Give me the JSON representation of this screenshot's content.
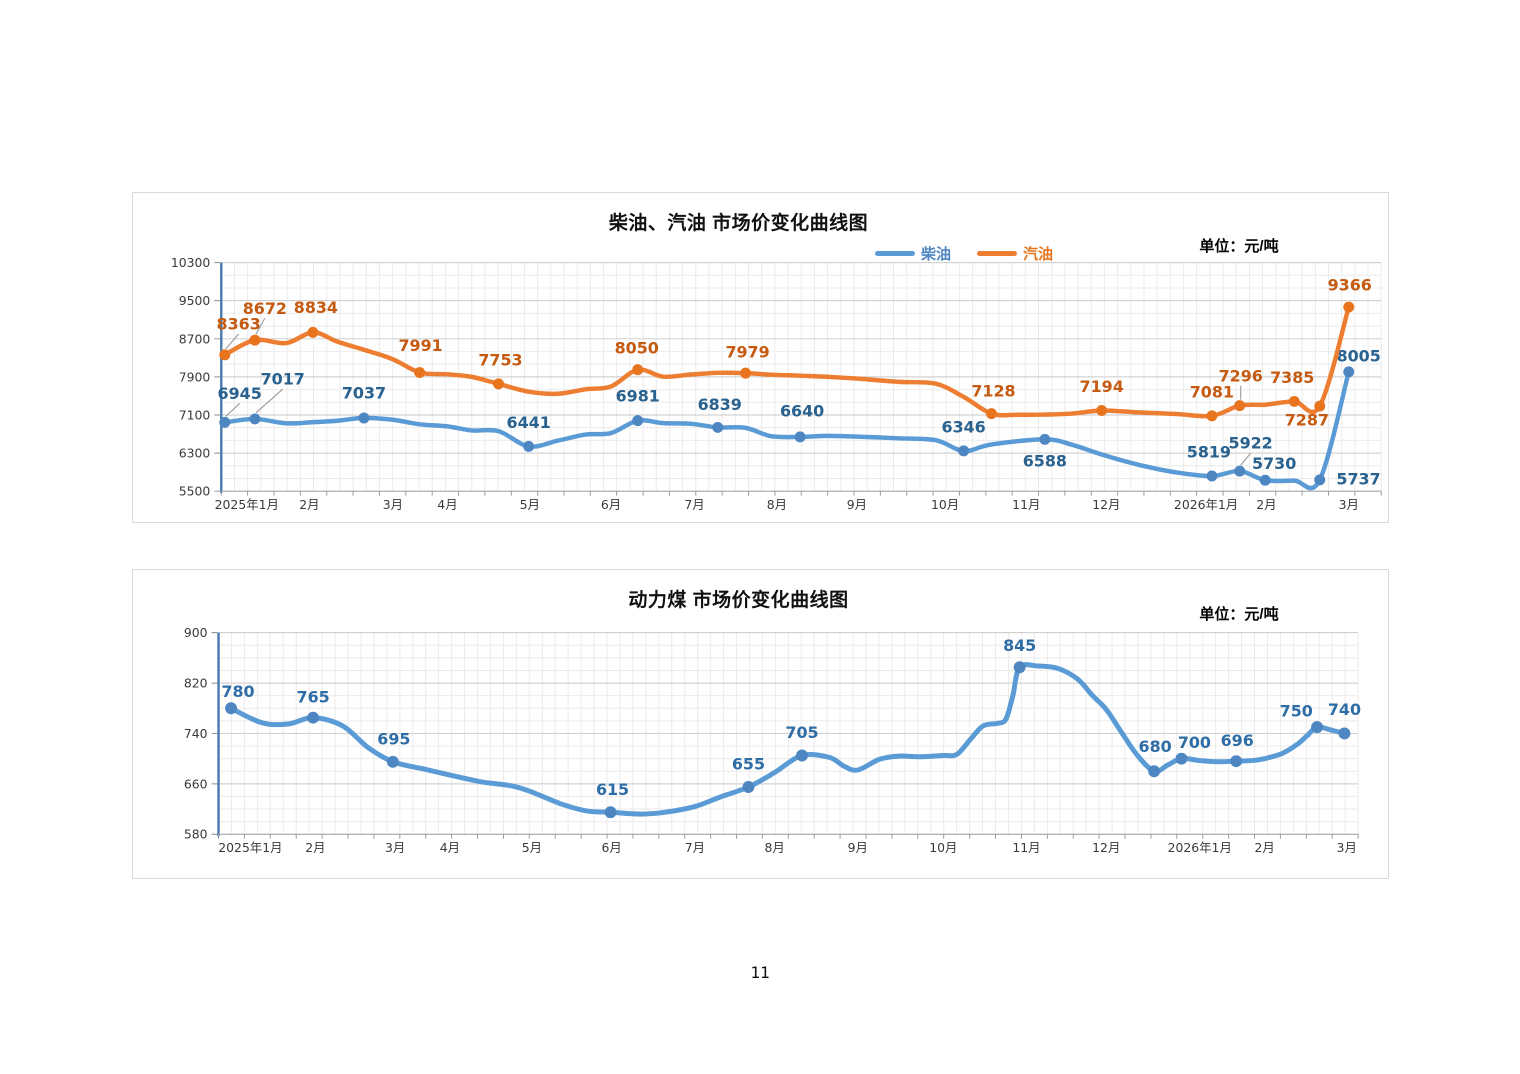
{
  "page": {
    "number": "11"
  },
  "chart_data": [
    {
      "id": "fuel",
      "type": "line",
      "title": "柴油、汽油 市场价变化曲线图",
      "unit": "单位：元/吨",
      "legend_position": "top-right",
      "grid": true,
      "y_axis": {
        "min": 5500,
        "max": 10300,
        "ticks": [
          5500,
          6300,
          7100,
          7900,
          8700,
          9500,
          10300
        ],
        "minor_div": 3
      },
      "x_ticks": [
        {
          "t": "2025年1月",
          "f": 0.022
        },
        {
          "t": "2月",
          "f": 0.076
        },
        {
          "t": "3月",
          "f": 0.148
        },
        {
          "t": "4月",
          "f": 0.195
        },
        {
          "t": "5月",
          "f": 0.266
        },
        {
          "t": "6月",
          "f": 0.336
        },
        {
          "t": "7月",
          "f": 0.408
        },
        {
          "t": "8月",
          "f": 0.479
        },
        {
          "t": "9月",
          "f": 0.548
        },
        {
          "t": "10月",
          "f": 0.624
        },
        {
          "t": "11月",
          "f": 0.694
        },
        {
          "t": "12月",
          "f": 0.763
        },
        {
          "t": "2026年1月",
          "f": 0.849
        },
        {
          "t": "2月",
          "f": 0.901
        },
        {
          "t": "3月",
          "f": 0.972
        }
      ],
      "legend": [
        {
          "key": "diesel",
          "label": "柴油"
        },
        {
          "key": "gasoline",
          "label": "汽油"
        }
      ],
      "series": [
        {
          "key": "diesel",
          "name": "柴油",
          "color": "#5B9BD5",
          "marker_color": "#4E86C2",
          "label_color": "#29618F",
          "points": [
            [
              0.003,
              6945
            ],
            [
              0.029,
              7017
            ],
            [
              0.056,
              6925
            ],
            [
              0.079,
              6950
            ],
            [
              0.1,
              6980
            ],
            [
              0.123,
              7037
            ],
            [
              0.148,
              7000
            ],
            [
              0.171,
              6905
            ],
            [
              0.195,
              6860
            ],
            [
              0.216,
              6775
            ],
            [
              0.239,
              6760
            ],
            [
              0.265,
              6441
            ],
            [
              0.29,
              6560
            ],
            [
              0.314,
              6690
            ],
            [
              0.336,
              6720
            ],
            [
              0.359,
              6981
            ],
            [
              0.381,
              6930
            ],
            [
              0.405,
              6915
            ],
            [
              0.428,
              6839
            ],
            [
              0.452,
              6830
            ],
            [
              0.474,
              6655
            ],
            [
              0.499,
              6640
            ],
            [
              0.523,
              6660
            ],
            [
              0.548,
              6645
            ],
            [
              0.584,
              6610
            ],
            [
              0.616,
              6570
            ],
            [
              0.64,
              6346
            ],
            [
              0.664,
              6480
            ],
            [
              0.71,
              6588
            ],
            [
              0.734,
              6470
            ],
            [
              0.759,
              6270
            ],
            [
              0.79,
              6060
            ],
            [
              0.824,
              5890
            ],
            [
              0.854,
              5819
            ],
            [
              0.878,
              5922
            ],
            [
              0.9,
              5730
            ],
            [
              0.925,
              5722
            ],
            [
              0.947,
              5737
            ],
            [
              0.972,
              8005
            ]
          ],
          "labels": [
            {
              "f": 0.003,
              "v": 6945,
              "t": "6945",
              "dx": 15,
              "dy": -29,
              "leader": true
            },
            {
              "f": 0.029,
              "v": 7017,
              "t": "7017",
              "dx": 28,
              "dy": -40,
              "leader": true
            },
            {
              "f": 0.123,
              "v": 7037,
              "t": "7037",
              "dx": 0,
              "dy": -25
            },
            {
              "f": 0.265,
              "v": 6441,
              "t": "6441",
              "dx": 0,
              "dy": -24
            },
            {
              "f": 0.359,
              "v": 6981,
              "t": "6981",
              "dx": 0,
              "dy": -25
            },
            {
              "f": 0.428,
              "v": 6839,
              "t": "6839",
              "dx": 2,
              "dy": -23
            },
            {
              "f": 0.499,
              "v": 6640,
              "t": "6640",
              "dx": 2,
              "dy": -26
            },
            {
              "f": 0.64,
              "v": 6346,
              "t": "6346",
              "dx": 0,
              "dy": -24
            },
            {
              "f": 0.71,
              "v": 6588,
              "t": "6588",
              "dx": 0,
              "dy": 22
            },
            {
              "f": 0.854,
              "v": 5819,
              "t": "5819",
              "dx": -3,
              "dy": -24
            },
            {
              "f": 0.878,
              "v": 5922,
              "t": "5922",
              "dx": 11,
              "dy": -28,
              "leader": true
            },
            {
              "f": 0.9,
              "v": 5730,
              "t": "5730",
              "dx": 9,
              "dy": -17
            },
            {
              "f": 0.947,
              "v": 5737,
              "t": "5737",
              "dx": 39,
              "dy": -1
            },
            {
              "f": 0.972,
              "v": 8005,
              "t": "8005",
              "dx": 10,
              "dy": -16
            }
          ]
        },
        {
          "key": "gasoline",
          "name": "汽油",
          "color": "#ED7D31",
          "marker_color": "#E8741E",
          "label_color": "#C55A11",
          "points": [
            [
              0.003,
              8363
            ],
            [
              0.029,
              8672
            ],
            [
              0.056,
              8610
            ],
            [
              0.079,
              8834
            ],
            [
              0.1,
              8640
            ],
            [
              0.123,
              8470
            ],
            [
              0.148,
              8270
            ],
            [
              0.171,
              7991
            ],
            [
              0.195,
              7955
            ],
            [
              0.216,
              7900
            ],
            [
              0.239,
              7753
            ],
            [
              0.265,
              7590
            ],
            [
              0.29,
              7545
            ],
            [
              0.314,
              7640
            ],
            [
              0.336,
              7700
            ],
            [
              0.359,
              8050
            ],
            [
              0.381,
              7905
            ],
            [
              0.405,
              7950
            ],
            [
              0.428,
              7985
            ],
            [
              0.452,
              7979
            ],
            [
              0.474,
              7945
            ],
            [
              0.499,
              7925
            ],
            [
              0.523,
              7900
            ],
            [
              0.548,
              7865
            ],
            [
              0.584,
              7795
            ],
            [
              0.616,
              7755
            ],
            [
              0.64,
              7480
            ],
            [
              0.664,
              7128
            ],
            [
              0.687,
              7105
            ],
            [
              0.71,
              7110
            ],
            [
              0.734,
              7130
            ],
            [
              0.759,
              7194
            ],
            [
              0.79,
              7155
            ],
            [
              0.824,
              7120
            ],
            [
              0.854,
              7081
            ],
            [
              0.878,
              7296
            ],
            [
              0.9,
              7315
            ],
            [
              0.925,
              7385
            ],
            [
              0.947,
              7287
            ],
            [
              0.972,
              9366
            ]
          ],
          "labels": [
            {
              "f": 0.003,
              "v": 8363,
              "t": "8363",
              "dx": 14,
              "dy": -31,
              "leader": true
            },
            {
              "f": 0.029,
              "v": 8672,
              "t": "8672",
              "dx": 10,
              "dy": -32,
              "leader": true
            },
            {
              "f": 0.079,
              "v": 8834,
              "t": "8834",
              "dx": 3,
              "dy": -25
            },
            {
              "f": 0.171,
              "v": 7991,
              "t": "7991",
              "dx": 1,
              "dy": -27
            },
            {
              "f": 0.239,
              "v": 7753,
              "t": "7753",
              "dx": 2,
              "dy": -24
            },
            {
              "f": 0.359,
              "v": 8050,
              "t": "8050",
              "dx": -1,
              "dy": -22
            },
            {
              "f": 0.452,
              "v": 7979,
              "t": "7979",
              "dx": 2,
              "dy": -21
            },
            {
              "f": 0.664,
              "v": 7128,
              "t": "7128",
              "dx": 2,
              "dy": -23
            },
            {
              "f": 0.759,
              "v": 7194,
              "t": "7194",
              "dx": 0,
              "dy": -24
            },
            {
              "f": 0.854,
              "v": 7081,
              "t": "7081",
              "dx": 0,
              "dy": -24
            },
            {
              "f": 0.878,
              "v": 7296,
              "t": "7296",
              "dx": 1,
              "dy": -30,
              "leader": true
            },
            {
              "f": 0.925,
              "v": 7385,
              "t": "7385",
              "dx": -2,
              "dy": -24
            },
            {
              "f": 0.947,
              "v": 7287,
              "t": "7287",
              "dx": -13,
              "dy": 14
            },
            {
              "f": 0.972,
              "v": 9366,
              "t": "9366",
              "dx": 1,
              "dy": -22
            }
          ]
        }
      ]
    },
    {
      "id": "coal",
      "type": "line",
      "title": "动力煤 市场价变化曲线图",
      "unit": "单位：元/吨",
      "grid": true,
      "y_axis": {
        "min": 580,
        "max": 900,
        "ticks": [
          580,
          660,
          740,
          820,
          900
        ],
        "minor_div": 4
      },
      "x_ticks": [
        {
          "t": "2025年1月",
          "f": 0.028
        },
        {
          "t": "2月",
          "f": 0.085
        },
        {
          "t": "3月",
          "f": 0.155
        },
        {
          "t": "4月",
          "f": 0.203
        },
        {
          "t": "5月",
          "f": 0.275
        },
        {
          "t": "6月",
          "f": 0.345
        },
        {
          "t": "7月",
          "f": 0.418
        },
        {
          "t": "8月",
          "f": 0.488
        },
        {
          "t": "9月",
          "f": 0.561
        },
        {
          "t": "10月",
          "f": 0.636
        },
        {
          "t": "11月",
          "f": 0.709
        },
        {
          "t": "12月",
          "f": 0.779
        },
        {
          "t": "2026年1月",
          "f": 0.861
        },
        {
          "t": "2月",
          "f": 0.918
        },
        {
          "t": "3月",
          "f": 0.99
        }
      ],
      "series": [
        {
          "key": "coal",
          "name": "动力煤",
          "color": "#5B9BD5",
          "marker_color": "#4E86C2",
          "label_color": "#2E6DA6",
          "points": [
            [
              0.011,
              780
            ],
            [
              0.038,
              757
            ],
            [
              0.061,
              755
            ],
            [
              0.083,
              765
            ],
            [
              0.109,
              752
            ],
            [
              0.131,
              718
            ],
            [
              0.153,
              695
            ],
            [
              0.179,
              684
            ],
            [
              0.203,
              674
            ],
            [
              0.231,
              663
            ],
            [
              0.257,
              657
            ],
            [
              0.275,
              647
            ],
            [
              0.301,
              628
            ],
            [
              0.323,
              617
            ],
            [
              0.344,
              615
            ],
            [
              0.371,
              612
            ],
            [
              0.392,
              615
            ],
            [
              0.418,
              624
            ],
            [
              0.44,
              639
            ],
            [
              0.465,
              655
            ],
            [
              0.488,
              678
            ],
            [
              0.512,
              705
            ],
            [
              0.536,
              702
            ],
            [
              0.549,
              688
            ],
            [
              0.561,
              682
            ],
            [
              0.58,
              699
            ],
            [
              0.597,
              704
            ],
            [
              0.615,
              703
            ],
            [
              0.636,
              705
            ],
            [
              0.648,
              707
            ],
            [
              0.66,
              731
            ],
            [
              0.671,
              752
            ],
            [
              0.684,
              756
            ],
            [
              0.691,
              763
            ],
            [
              0.697,
              800
            ],
            [
              0.703,
              845
            ],
            [
              0.719,
              847
            ],
            [
              0.737,
              843
            ],
            [
              0.754,
              826
            ],
            [
              0.767,
              800
            ],
            [
              0.779,
              778
            ],
            [
              0.793,
              740
            ],
            [
              0.806,
              706
            ],
            [
              0.821,
              680
            ],
            [
              0.833,
              690
            ],
            [
              0.845,
              700
            ],
            [
              0.861,
              697
            ],
            [
              0.876,
              695
            ],
            [
              0.893,
              696
            ],
            [
              0.907,
              697
            ],
            [
              0.918,
              700
            ],
            [
              0.933,
              708
            ],
            [
              0.946,
              722
            ],
            [
              0.955,
              736
            ],
            [
              0.964,
              750
            ],
            [
              0.977,
              745
            ],
            [
              0.988,
              740
            ]
          ],
          "labels": [
            {
              "f": 0.011,
              "v": 780,
              "t": "780",
              "dx": 7,
              "dy": -17
            },
            {
              "f": 0.083,
              "v": 765,
              "t": "765",
              "dx": 0,
              "dy": -21
            },
            {
              "f": 0.153,
              "v": 695,
              "t": "695",
              "dx": 1,
              "dy": -23
            },
            {
              "f": 0.344,
              "v": 615,
              "t": "615",
              "dx": 2,
              "dy": -23
            },
            {
              "f": 0.465,
              "v": 655,
              "t": "655",
              "dx": 0,
              "dy": -23
            },
            {
              "f": 0.512,
              "v": 705,
              "t": "705",
              "dx": 0,
              "dy": -23
            },
            {
              "f": 0.703,
              "v": 845,
              "t": "845",
              "dx": 0,
              "dy": -22
            },
            {
              "f": 0.821,
              "v": 680,
              "t": "680",
              "dx": 1,
              "dy": -25
            },
            {
              "f": 0.845,
              "v": 700,
              "t": "700",
              "dx": 13,
              "dy": -16
            },
            {
              "f": 0.893,
              "v": 696,
              "t": "696",
              "dx": 1,
              "dy": -21
            },
            {
              "f": 0.964,
              "v": 750,
              "t": "750",
              "dx": -21,
              "dy": -16
            },
            {
              "f": 0.988,
              "v": 740,
              "t": "740",
              "dx": 0,
              "dy": -24
            }
          ]
        }
      ]
    }
  ]
}
